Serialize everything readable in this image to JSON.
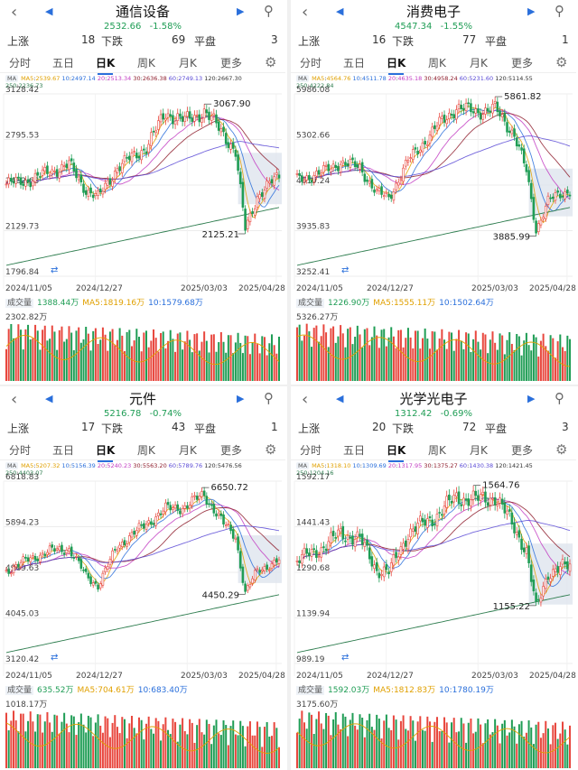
{
  "tabs": [
    "分时",
    "五日",
    "日K",
    "周K",
    "月K",
    "更多"
  ],
  "ma_labels": [
    "MA",
    "MA5",
    "10",
    "20",
    "30",
    "60",
    "120",
    "250"
  ],
  "vol_labels": [
    "成交量",
    "MA5",
    "10"
  ],
  "colors": {
    "up": "#e8473e",
    "down": "#1f9d55",
    "ma5": "#e0a000",
    "ma10": "#2a6fdb",
    "ma20": "#c23cc2",
    "ma30": "#8f1f2e",
    "ma60": "#5a4ad6",
    "ma120": "#333333",
    "ma250": "#2e7d4f",
    "accent": "#2a6fdb"
  },
  "panels": [
    {
      "title": "通信设备",
      "price": "2532.66",
      "change": "-1.58%",
      "rise_label": "上涨",
      "rise": "18",
      "fall_label": "下跌",
      "fall": "69",
      "flat_label": "平盘",
      "flat": "3",
      "ma_values": [
        "2539.67",
        "2497.14",
        "2513.34",
        "2636.38",
        "2749.13",
        "2667.30",
        "2236.73"
      ],
      "chart_data": {
        "type": "candlestick",
        "y_ticks": [
          "3128.42",
          "2795.53",
          "2462.63",
          "2129.73",
          "1796.84"
        ],
        "y_range": [
          1796.84,
          3128.42
        ],
        "x_ticks": [
          "2024/11/05",
          "2024/12/27",
          "2025/03/03",
          "2025/04/28"
        ],
        "high_label": "3067.90",
        "low_label": "2125.21",
        "anchors": [
          [
            0,
            2470
          ],
          [
            10,
            2500
          ],
          [
            18,
            2560
          ],
          [
            26,
            2610
          ],
          [
            33,
            2430
          ],
          [
            38,
            2370
          ],
          [
            46,
            2590
          ],
          [
            58,
            2740
          ],
          [
            66,
            2990
          ],
          [
            74,
            2930
          ],
          [
            82,
            3000
          ],
          [
            90,
            2840
          ],
          [
            95,
            2700
          ],
          [
            99,
            2140
          ],
          [
            104,
            2380
          ],
          [
            113,
            2532
          ]
        ],
        "volume": {
          "value": "1388.44万",
          "ma5": "1819.16万",
          "ma10": "1579.68万",
          "max_label": "2302.82万"
        }
      }
    },
    {
      "title": "消费电子",
      "price": "4547.34",
      "change": "-1.55%",
      "rise_label": "上涨",
      "rise": "16",
      "fall_label": "下跌",
      "fall": "77",
      "flat_label": "平盘",
      "flat": "1",
      "ma_values": [
        "4564.76",
        "4511.78",
        "4635.18",
        "4958.24",
        "5231.60",
        "5114.55",
        "4222.84"
      ],
      "chart_data": {
        "type": "candlestick",
        "y_ticks": [
          "5986.08",
          "5302.66",
          "4619.24",
          "3935.83",
          "3252.41"
        ],
        "y_range": [
          3252.41,
          5986.08
        ],
        "x_ticks": [
          "2024/11/05",
          "2024/12/27",
          "2025/03/03",
          "2025/04/28"
        ],
        "high_label": "5861.82",
        "low_label": "3885.99",
        "anchors": [
          [
            0,
            4700
          ],
          [
            10,
            4800
          ],
          [
            18,
            4960
          ],
          [
            26,
            4880
          ],
          [
            33,
            4500
          ],
          [
            38,
            4430
          ],
          [
            46,
            4980
          ],
          [
            58,
            5500
          ],
          [
            66,
            5780
          ],
          [
            74,
            5720
          ],
          [
            82,
            5760
          ],
          [
            90,
            5380
          ],
          [
            95,
            4820
          ],
          [
            99,
            3950
          ],
          [
            104,
            4380
          ],
          [
            113,
            4547
          ]
        ],
        "volume": {
          "value": "1226.90万",
          "ma5": "1555.11万",
          "ma10": "1502.64万",
          "max_label": "5326.27万"
        }
      }
    },
    {
      "title": "元件",
      "price": "5216.78",
      "change": "-0.74%",
      "rise_label": "上涨",
      "rise": "17",
      "fall_label": "下跌",
      "fall": "43",
      "flat_label": "平盘",
      "flat": "1",
      "ma_values": [
        "5207.32",
        "5156.39",
        "5240.23",
        "5563.20",
        "5789.76",
        "5476.56",
        "4403.07"
      ],
      "chart_data": {
        "type": "candlestick",
        "y_ticks": [
          "6818.83",
          "5894.23",
          "4969.63",
          "4045.03",
          "3120.42"
        ],
        "y_range": [
          3120.42,
          6818.83
        ],
        "x_ticks": [
          "2024/11/05",
          "2024/12/27",
          "2025/03/03",
          "2025/04/28"
        ],
        "high_label": "6650.72",
        "low_label": "4450.29",
        "anchors": [
          [
            0,
            5000
          ],
          [
            10,
            5250
          ],
          [
            18,
            5400
          ],
          [
            26,
            5450
          ],
          [
            33,
            4900
          ],
          [
            38,
            4700
          ],
          [
            46,
            5500
          ],
          [
            58,
            5950
          ],
          [
            66,
            6250
          ],
          [
            74,
            6300
          ],
          [
            82,
            6550
          ],
          [
            90,
            5950
          ],
          [
            95,
            5700
          ],
          [
            99,
            4550
          ],
          [
            104,
            5000
          ],
          [
            113,
            5216
          ]
        ],
        "volume": {
          "value": "635.52万",
          "ma5": "704.61万",
          "ma10": "683.40万",
          "max_label": "1018.17万"
        }
      }
    },
    {
      "title": "光学光电子",
      "price": "1312.42",
      "change": "-0.69%",
      "rise_label": "上涨",
      "rise": "20",
      "fall_label": "下跌",
      "fall": "72",
      "flat_label": "平盘",
      "flat": "3",
      "ma_values": [
        "1318.10",
        "1309.69",
        "1317.95",
        "1375.27",
        "1430.38",
        "1421.45",
        "1204.16"
      ],
      "chart_data": {
        "type": "candlestick",
        "y_ticks": [
          "1592.17",
          "1441.43",
          "1290.68",
          "1139.94",
          "989.19"
        ],
        "y_range": [
          989.19,
          1592.17
        ],
        "x_ticks": [
          "2024/11/05",
          "2024/12/27",
          "2025/03/03",
          "2025/04/28"
        ],
        "high_label": "1564.76",
        "low_label": "1155.22",
        "anchors": [
          [
            0,
            1330
          ],
          [
            10,
            1370
          ],
          [
            18,
            1420
          ],
          [
            26,
            1400
          ],
          [
            33,
            1300
          ],
          [
            38,
            1290
          ],
          [
            46,
            1420
          ],
          [
            58,
            1480
          ],
          [
            66,
            1540
          ],
          [
            74,
            1530
          ],
          [
            82,
            1540
          ],
          [
            90,
            1440
          ],
          [
            95,
            1360
          ],
          [
            99,
            1170
          ],
          [
            104,
            1290
          ],
          [
            113,
            1312
          ]
        ],
        "volume": {
          "value": "1592.03万",
          "ma5": "1812.83万",
          "ma10": "1780.19万",
          "max_label": "3175.60万"
        }
      }
    }
  ]
}
